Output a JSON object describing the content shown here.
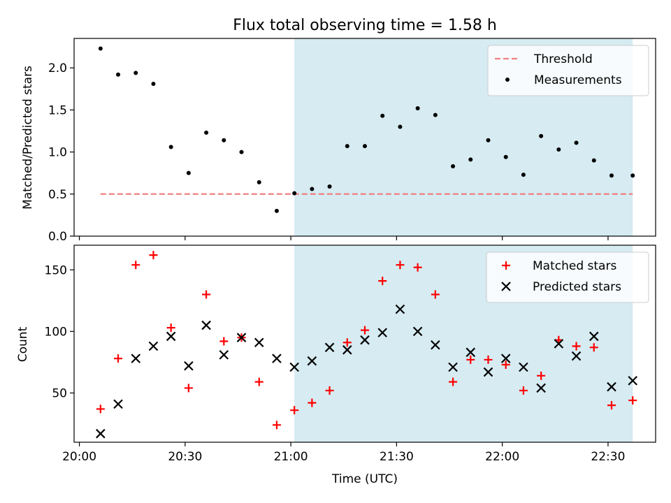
{
  "title": "Flux total observing time = 1.58 h",
  "chart_data": [
    {
      "type": "scatter",
      "ylabel": "Matched/Predicted stars",
      "ylim": [
        0,
        2.35
      ],
      "yticks": [
        0.0,
        0.5,
        1.0,
        1.5,
        2.0
      ],
      "ytick_labels": [
        "0.0",
        "0.5",
        "1.0",
        "1.5",
        "2.0"
      ],
      "legend_placement": "top-right",
      "highlight_span": {
        "start_min": 61,
        "end_min": 157,
        "color": "#add8e6"
      },
      "threshold": {
        "name": "Threshold",
        "value": 0.5,
        "x_start_min": 6,
        "x_end_min": 157,
        "color": "#f08080",
        "style": "dashed"
      },
      "series": [
        {
          "name": "Measurements",
          "color": "#000000",
          "marker": "dot",
          "x_min": [
            6,
            11,
            16,
            21,
            26,
            31,
            36,
            41,
            46,
            51,
            56,
            61,
            66,
            71,
            76,
            81,
            86,
            91,
            96,
            101,
            106,
            111,
            116,
            121,
            126,
            131,
            136,
            141,
            146,
            151,
            157
          ],
          "values": [
            2.23,
            1.92,
            1.94,
            1.81,
            1.06,
            0.75,
            1.23,
            1.14,
            1.0,
            0.64,
            0.3,
            0.51,
            0.56,
            0.59,
            1.07,
            1.07,
            1.43,
            1.3,
            1.52,
            1.44,
            0.83,
            0.91,
            1.14,
            0.94,
            0.73,
            1.19,
            1.03,
            1.11,
            0.9,
            0.72,
            0.72
          ]
        }
      ]
    },
    {
      "type": "scatter",
      "xlabel": "Time (UTC)",
      "ylabel": "Count",
      "ylim": [
        10,
        170
      ],
      "yticks": [
        50,
        100,
        150
      ],
      "ytick_labels": [
        "50",
        "100",
        "150"
      ],
      "xlim_min": [
        -1.5,
        163.5
      ],
      "xticks_min": [
        0,
        30,
        60,
        90,
        120,
        150
      ],
      "xtick_labels": [
        "20:00",
        "20:30",
        "21:00",
        "21:30",
        "22:00",
        "22:30"
      ],
      "legend_placement": "top-right",
      "highlight_span": {
        "start_min": 61,
        "end_min": 157,
        "color": "#add8e6"
      },
      "series": [
        {
          "name": "Matched stars",
          "color": "#ff0000",
          "marker": "plus",
          "x_min": [
            6,
            11,
            16,
            21,
            26,
            31,
            36,
            41,
            46,
            51,
            56,
            61,
            66,
            71,
            76,
            81,
            86,
            91,
            96,
            101,
            106,
            111,
            116,
            121,
            126,
            131,
            136,
            141,
            146,
            151,
            157
          ],
          "values": [
            37,
            78,
            154,
            162,
            103,
            54,
            130,
            92,
            95,
            59,
            24,
            36,
            42,
            52,
            91,
            101,
            141,
            154,
            152,
            130,
            59,
            77,
            77,
            73,
            52,
            64,
            93,
            88,
            87,
            40,
            44
          ]
        },
        {
          "name": "Predicted stars",
          "color": "#000000",
          "marker": "x",
          "x_min": [
            6,
            11,
            16,
            21,
            26,
            31,
            36,
            41,
            46,
            51,
            56,
            61,
            66,
            71,
            76,
            81,
            86,
            91,
            96,
            101,
            106,
            111,
            116,
            121,
            126,
            131,
            136,
            141,
            146,
            151,
            157
          ],
          "values": [
            17,
            41,
            78,
            88,
            96,
            72,
            105,
            81,
            95,
            91,
            78,
            71,
            76,
            87,
            85,
            93,
            99,
            118,
            100,
            89,
            71,
            83,
            67,
            78,
            71,
            54,
            90,
            80,
            96,
            55,
            60
          ]
        }
      ]
    }
  ]
}
